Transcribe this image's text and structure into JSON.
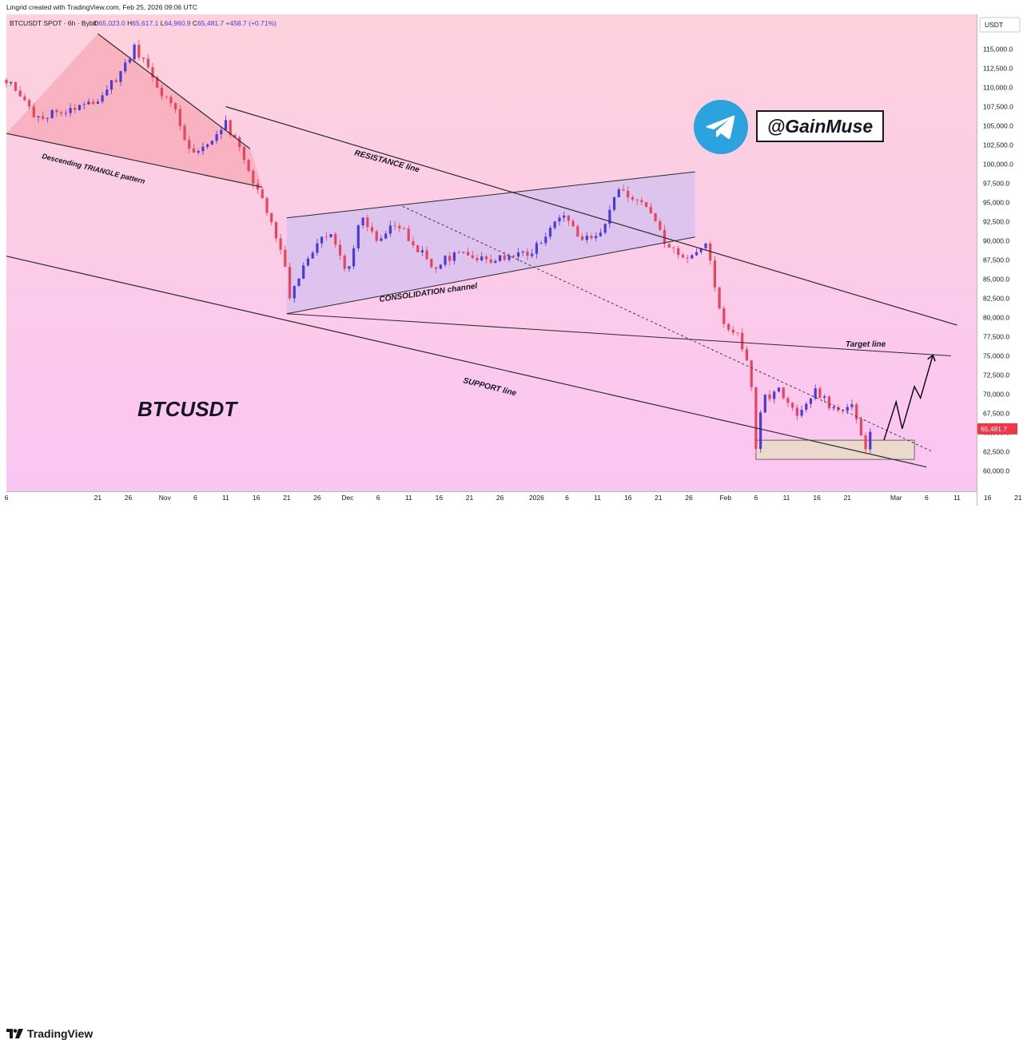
{
  "header": {
    "created_by": "Lingrid created with TradingView.com, Feb 25, 2026 09:06 UTC",
    "symbol_line": "BTCUSDT SPOT · 6h · Bybit",
    "ohlc": {
      "open_label": "O",
      "open": "65,023.0",
      "high_label": "H",
      "high": "65,617.1",
      "low_label": "L",
      "low": "64,960.9",
      "close_label": "C",
      "close": "65,481.7",
      "change": "+458.7 (+0.71%)"
    }
  },
  "price_scale": {
    "currency": "USDT",
    "labels": [
      "115,000.0",
      "112,500.0",
      "110,000.0",
      "107,500.0",
      "105,000.0",
      "102,500.0",
      "100,000.0",
      "97,500.0",
      "95,000.0",
      "92,500.0",
      "90,000.0",
      "87,500.0",
      "85,000.0",
      "82,500.0",
      "80,000.0",
      "77,500.0",
      "75,000.0",
      "72,500.0",
      "70,000.0",
      "67,500.0",
      "65,000.0",
      "62,500.0",
      "60,000.0"
    ],
    "last_price": "65,481.7",
    "last_price_color": "#f23645"
  },
  "time_scale": {
    "labels": [
      "6",
      "21",
      "26",
      "Nov",
      "6",
      "11",
      "16",
      "21",
      "26",
      "Dec",
      "6",
      "11",
      "16",
      "21",
      "26",
      "2026",
      "6",
      "11",
      "16",
      "21",
      "26",
      "Feb",
      "6",
      "11",
      "16",
      "21",
      "Mar",
      "6",
      "11",
      "16",
      "21"
    ]
  },
  "annotations": {
    "descending_triangle": "Descending TRIANGLE pattern",
    "resistance": "RESISTANCE line",
    "consolidation": "CONSOLIDATION channel",
    "support": "SUPPORT line",
    "target": "Target line",
    "ticker": "BTCUSDT"
  },
  "telegram": {
    "handle": "@GainMuse",
    "icon": "telegram-icon",
    "color": "#2aa3de"
  },
  "footer": {
    "brand": "TradingView",
    "icon": "tradingview-logo-icon"
  },
  "colors": {
    "up": "#4a3ad8",
    "down": "#e8445a",
    "bg_top": "#fdd2dd",
    "bg_bottom": "#fbc5f2",
    "triangle_fill": "#f59aa6",
    "channel_fill": "#d7c2ee"
  },
  "chart_data": {
    "type": "candlestick",
    "title": "BTCUSDT",
    "symbol": "BTCUSDT SPOT · 6h · Bybit",
    "timeframe": "6h",
    "ylim": [
      60000,
      117500
    ],
    "y_unit": "USDT",
    "x_ticks": [
      "6",
      "21",
      "26",
      "Nov",
      "6",
      "11",
      "16",
      "21",
      "26",
      "Dec",
      "6",
      "11",
      "16",
      "21",
      "26",
      "2026",
      "6",
      "11",
      "16",
      "21",
      "26",
      "Feb",
      "6",
      "11",
      "16",
      "21",
      "Mar",
      "6",
      "11",
      "16",
      "21"
    ],
    "price_path": [
      {
        "date": "Oct 6",
        "price": 111000
      },
      {
        "date": "Oct 11",
        "price": 106000
      },
      {
        "date": "Oct 21",
        "price": 108500
      },
      {
        "date": "Oct 25",
        "price": 112000
      },
      {
        "date": "Oct 27",
        "price": 115500
      },
      {
        "date": "Oct 31",
        "price": 109500
      },
      {
        "date": "Nov 3",
        "price": 106500
      },
      {
        "date": "Nov 4",
        "price": 103000
      },
      {
        "date": "Nov 6",
        "price": 101500
      },
      {
        "date": "Nov 9",
        "price": 103500
      },
      {
        "date": "Nov 11",
        "price": 105500
      },
      {
        "date": "Nov 14",
        "price": 100500
      },
      {
        "date": "Nov 17",
        "price": 95500
      },
      {
        "date": "Nov 21",
        "price": 86000
      },
      {
        "date": "Nov 21",
        "price": 81000
      },
      {
        "date": "Nov 24",
        "price": 87500
      },
      {
        "date": "Nov 28",
        "price": 91500
      },
      {
        "date": "Dec 1",
        "price": 85500
      },
      {
        "date": "Dec 3",
        "price": 93500
      },
      {
        "date": "Dec 6",
        "price": 89500
      },
      {
        "date": "Dec 9",
        "price": 92500
      },
      {
        "date": "Dec 11",
        "price": 90500
      },
      {
        "date": "Dec 15",
        "price": 86500
      },
      {
        "date": "Dec 19",
        "price": 88500
      },
      {
        "date": "Dec 23",
        "price": 87500
      },
      {
        "date": "Dec 27",
        "price": 88000
      },
      {
        "date": "Dec 31",
        "price": 88500
      },
      {
        "date": "Jan 3",
        "price": 91000
      },
      {
        "date": "Jan 5",
        "price": 93500
      },
      {
        "date": "Jan 8",
        "price": 90500
      },
      {
        "date": "Jan 12",
        "price": 91000
      },
      {
        "date": "Jan 14",
        "price": 96500
      },
      {
        "date": "Jan 18",
        "price": 95000
      },
      {
        "date": "Jan 20",
        "price": 93500
      },
      {
        "date": "Jan 22",
        "price": 89500
      },
      {
        "date": "Jan 26",
        "price": 88000
      },
      {
        "date": "Jan 29",
        "price": 89500
      },
      {
        "date": "Jan 30",
        "price": 84500
      },
      {
        "date": "Feb 1",
        "price": 78500
      },
      {
        "date": "Feb 3",
        "price": 77500
      },
      {
        "date": "Feb 5",
        "price": 73500
      },
      {
        "date": "Feb 6",
        "price": 63000
      },
      {
        "date": "Feb 7",
        "price": 69500
      },
      {
        "date": "Feb 10",
        "price": 70500
      },
      {
        "date": "Feb 13",
        "price": 67000
      },
      {
        "date": "Feb 16",
        "price": 70500
      },
      {
        "date": "Feb 19",
        "price": 67500
      },
      {
        "date": "Feb 22",
        "price": 68500
      },
      {
        "date": "Feb 24",
        "price": 63000
      },
      {
        "date": "Feb 25",
        "price": 65481.7
      }
    ],
    "last": {
      "open": 65023.0,
      "high": 65617.1,
      "low": 64960.9,
      "close": 65481.7,
      "change": 458.7,
      "change_pct": 0.71
    },
    "drawings": {
      "descending_triangle": {
        "label": "Descending TRIANGLE pattern",
        "upper": [
          [
            "Oct 21",
            117000
          ],
          [
            "Nov 15",
            102000
          ]
        ],
        "lower": [
          [
            "Oct 6",
            104000
          ],
          [
            "Nov 17",
            97000
          ]
        ]
      },
      "resistance_line": {
        "label": "RESISTANCE line",
        "points": [
          [
            "Nov 11",
            107500
          ],
          [
            "Mar 11",
            79000
          ]
        ]
      },
      "consolidation_channel": {
        "label": "CONSOLIDATION channel",
        "upper": [
          [
            "Nov 21",
            93000
          ],
          [
            "Jan 27",
            99000
          ]
        ],
        "lower": [
          [
            "Nov 21",
            80500
          ],
          [
            "Jan 27",
            90500
          ]
        ]
      },
      "support_line": {
        "label": "SUPPORT line",
        "points": [
          [
            "Oct 6",
            88000
          ],
          [
            "Mar 6",
            60500
          ]
        ]
      },
      "target_line": {
        "label": "Target line",
        "points": [
          [
            "Nov 21",
            80500
          ],
          [
            "Mar 10",
            75000
          ]
        ],
        "target": 75000
      },
      "dashed_trendline": {
        "points": [
          [
            "Dec 10",
            94500
          ],
          [
            "Mar 7",
            62500
          ]
        ]
      },
      "support_zone": {
        "from": "Feb 6",
        "to": "Mar 4",
        "low": 61500,
        "high": 64000
      },
      "projection_path": [
        [
          "Feb 27",
          64000
        ],
        [
          "Mar 1",
          69000
        ],
        [
          "Mar 2",
          65500
        ],
        [
          "Mar 4",
          71000
        ],
        [
          "Mar 5",
          69500
        ],
        [
          "Mar 7",
          75000
        ]
      ]
    }
  }
}
